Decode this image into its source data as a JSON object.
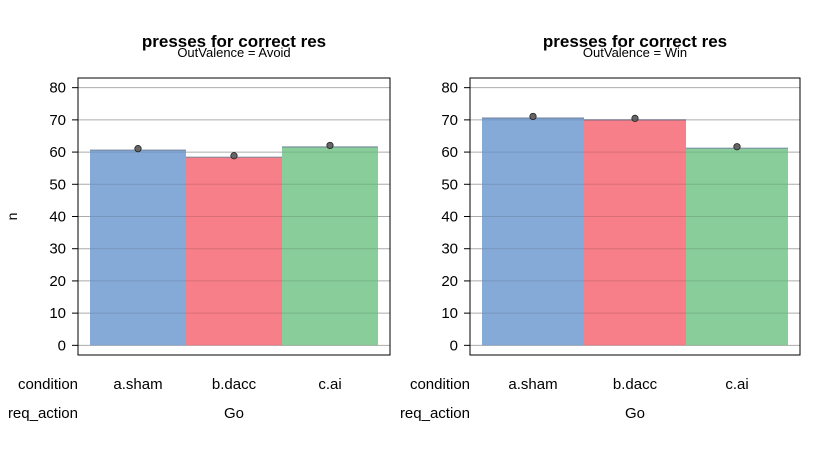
{
  "chart_data": [
    {
      "type": "bar",
      "title": "presses for correct res",
      "subtitle": "OutValence = Avoid",
      "ylabel": "n",
      "xlabel": "",
      "ylim": [
        -3,
        83
      ],
      "yticks": [
        0,
        10,
        20,
        30,
        40,
        50,
        60,
        70,
        80
      ],
      "grid": true,
      "categories": [
        "a.sham",
        "b.dacc",
        "c.ai"
      ],
      "values": [
        60.6,
        58.4,
        61.6
      ],
      "colors": [
        "#86aad8",
        "#f67f89",
        "#89cd9b"
      ],
      "x_factor_labels": [
        {
          "name": "condition",
          "levels": [
            "a.sham",
            "b.dacc",
            "c.ai"
          ]
        },
        {
          "name": "req_action",
          "levels": [
            "Go"
          ]
        }
      ]
    },
    {
      "type": "bar",
      "title": "presses for correct res",
      "subtitle": "OutValence = Win",
      "ylabel": "",
      "xlabel": "",
      "ylim": [
        -3,
        83
      ],
      "yticks": [
        0,
        10,
        20,
        30,
        40,
        50,
        60,
        70,
        80
      ],
      "grid": true,
      "categories": [
        "a.sham",
        "b.dacc",
        "c.ai"
      ],
      "values": [
        70.6,
        70.0,
        61.2
      ],
      "colors": [
        "#86aad8",
        "#f67f89",
        "#89cd9b"
      ],
      "x_factor_labels": [
        {
          "name": "condition",
          "levels": [
            "a.sham",
            "b.dacc",
            "c.ai"
          ]
        },
        {
          "name": "req_action",
          "levels": [
            "Go"
          ]
        }
      ]
    }
  ]
}
